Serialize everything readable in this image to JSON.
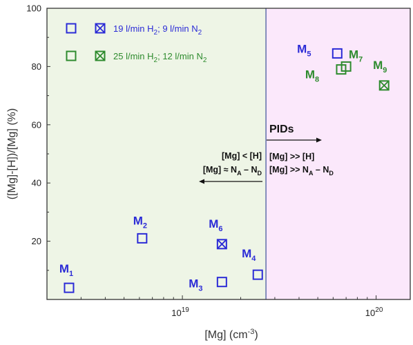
{
  "chart_data": {
    "type": "scatter",
    "x_scale": "log",
    "xlabel": "[Mg] (cm",
    "xlabel_sup": "-3",
    "xlabel_end": ")",
    "ylabel": "([Mg]-[H])/[Mg] (%)",
    "xlim": [
      2e+18,
      1.5e+20
    ],
    "ylim": [
      0,
      100
    ],
    "x_ticks": [
      {
        "value": 1e+19,
        "base": "10",
        "exp": "19"
      },
      {
        "value": 1e+20,
        "base": "10",
        "exp": "20"
      }
    ],
    "y_ticks": [
      20,
      40,
      60,
      80,
      100
    ],
    "grid": false,
    "regions": [
      {
        "x_from": 2e+18,
        "x_to": 2.7e+19,
        "color": "#eef5e6"
      },
      {
        "x_from": 2.7e+19,
        "x_to": 1.5e+20,
        "color": "#fbe8fb"
      }
    ],
    "divider_x": 2.7e+19,
    "series": [
      {
        "name": "19 l/min H2; 9 l/min N2",
        "color": "#2b2bd6",
        "points": [
          {
            "id": "M",
            "sub": "1",
            "x": 2.6e+18,
            "y": 4,
            "marker": "open-square"
          },
          {
            "id": "M",
            "sub": "2",
            "x": 6.2e+18,
            "y": 21,
            "marker": "open-square"
          },
          {
            "id": "M",
            "sub": "3",
            "x": 1.6e+19,
            "y": 6,
            "marker": "open-square"
          },
          {
            "id": "M",
            "sub": "4",
            "x": 2.45e+19,
            "y": 8.5,
            "marker": "open-square"
          },
          {
            "id": "M",
            "sub": "5",
            "x": 6.3e+19,
            "y": 84.5,
            "marker": "open-square"
          },
          {
            "id": "M",
            "sub": "6",
            "x": 1.6e+19,
            "y": 19,
            "marker": "crossed-square"
          }
        ]
      },
      {
        "name": "25 l/min H2; 12 l/min N2",
        "color": "#2e8b2e",
        "points": [
          {
            "id": "M",
            "sub": "7",
            "x": 7e+19,
            "y": 80,
            "marker": "open-square"
          },
          {
            "id": "M",
            "sub": "8",
            "x": 6.6e+19,
            "y": 79,
            "marker": "open-square"
          },
          {
            "id": "M",
            "sub": "9",
            "x": 1.1e+20,
            "y": 73.5,
            "marker": "crossed-square"
          }
        ]
      }
    ],
    "legend": {
      "placement": "top-left",
      "rows": [
        {
          "text": "19 l/min H",
          "sub1": "2",
          "mid": "; 9 l/min N",
          "sub2": "2",
          "color": "#2b2bd6"
        },
        {
          "text": "25 l/min H",
          "sub1": "2",
          "mid": "; 12 l/min N",
          "sub2": "2",
          "color": "#2e8b2e"
        }
      ]
    },
    "annotations": {
      "pids": "PIDs",
      "left_line1": "[Mg] < [H]",
      "left_line2_a": "[Mg] ≈ N",
      "left_line2_subA": "A",
      "left_line2_b": " – N",
      "left_line2_subD": "D",
      "right_line1": "[Mg] >> [H]",
      "right_line2_a": "[Mg] >> N",
      "right_line2_subA": "A",
      "right_line2_b": " – N",
      "right_line2_subD": "D"
    }
  }
}
